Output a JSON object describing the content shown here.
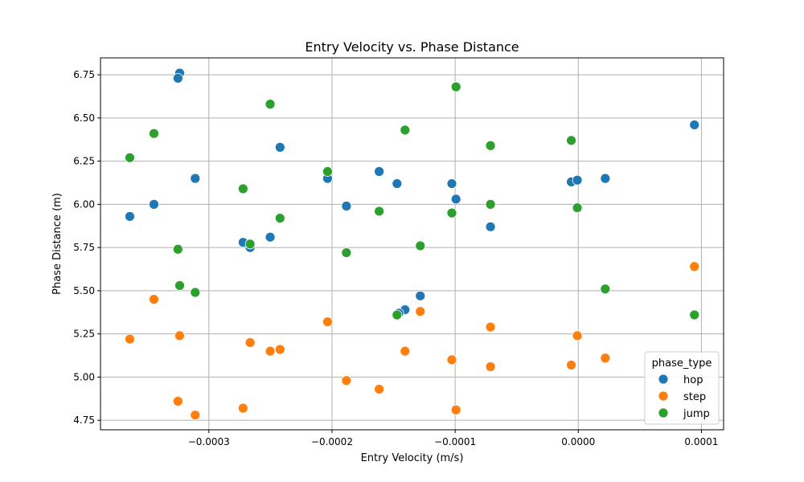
{
  "chart_data": {
    "type": "scatter",
    "title": "Entry Velocity vs. Phase Distance",
    "xlabel": "Entry Velocity (m/s)",
    "ylabel": "Phase Distance (m)",
    "xlim": [
      -0.000388,
      0.000118
    ],
    "ylim": [
      4.695,
      6.848
    ],
    "x_ticks": [
      -0.0003,
      -0.0002,
      -0.0001,
      0.0,
      0.0001
    ],
    "x_tick_labels": [
      "−0.0003",
      "−0.0002",
      "−0.0001",
      "0.0000",
      "0.0001"
    ],
    "y_ticks": [
      4.75,
      5.0,
      5.25,
      5.5,
      5.75,
      6.0,
      6.25,
      6.5,
      6.75
    ],
    "y_tick_labels": [
      "4.75",
      "5.00",
      "5.25",
      "5.50",
      "5.75",
      "6.00",
      "6.25",
      "6.50",
      "6.75"
    ],
    "grid": true,
    "legend": {
      "title": "phase_type",
      "placement": "lower-right"
    },
    "series": [
      {
        "name": "hop",
        "color": "#1f77b4",
        "points": [
          [
            -0.0003237,
            6.76
          ],
          [
            -0.0003251,
            6.73
          ],
          [
            -0.0003642,
            5.93
          ],
          [
            -0.0003446,
            6.0
          ],
          [
            -0.0003111,
            6.15
          ],
          [
            -0.0002722,
            5.78
          ],
          [
            -0.0002665,
            5.75
          ],
          [
            -0.0002502,
            5.81
          ],
          [
            -0.0002422,
            6.33
          ],
          [
            -0.0002036,
            6.15
          ],
          [
            -0.0001883,
            5.99
          ],
          [
            -0.0001617,
            6.19
          ],
          [
            -0.0001472,
            6.12
          ],
          [
            -0.0001407,
            5.39
          ],
          [
            -0.0001457,
            5.37
          ],
          [
            -0.0001283,
            5.47
          ],
          [
            -0.0001027,
            6.12
          ],
          [
            -9.93e-05,
            6.03
          ],
          [
            -7.13e-05,
            5.87
          ],
          [
            -5.7e-06,
            6.13
          ],
          [
            -8e-07,
            6.14
          ],
          [
            2.19e-05,
            6.15
          ],
          [
            9.43e-05,
            6.46
          ]
        ]
      },
      {
        "name": "step",
        "color": "#ff7f0e",
        "points": [
          [
            -0.0003642,
            5.22
          ],
          [
            -0.0003446,
            5.45
          ],
          [
            -0.0003237,
            5.24
          ],
          [
            -0.0003251,
            4.86
          ],
          [
            -0.0003111,
            4.78
          ],
          [
            -0.0002722,
            4.82
          ],
          [
            -0.0002665,
            5.2
          ],
          [
            -0.0002502,
            5.15
          ],
          [
            -0.0002422,
            5.16
          ],
          [
            -0.0002036,
            5.32
          ],
          [
            -0.0001883,
            4.98
          ],
          [
            -0.0001617,
            4.93
          ],
          [
            -0.0001407,
            5.15
          ],
          [
            -0.0001283,
            5.38
          ],
          [
            -0.0001027,
            5.1
          ],
          [
            -9.93e-05,
            4.81
          ],
          [
            -7.13e-05,
            5.29
          ],
          [
            -7.13e-05,
            5.06
          ],
          [
            -5.7e-06,
            5.07
          ],
          [
            -8e-07,
            5.24
          ],
          [
            2.19e-05,
            5.11
          ],
          [
            9.43e-05,
            5.64
          ]
        ]
      },
      {
        "name": "jump",
        "color": "#2ca02c",
        "points": [
          [
            -0.0003642,
            6.27
          ],
          [
            -0.0003446,
            6.41
          ],
          [
            -0.0003251,
            5.74
          ],
          [
            -0.0003237,
            5.53
          ],
          [
            -0.0003111,
            5.49
          ],
          [
            -0.0002722,
            6.09
          ],
          [
            -0.0002665,
            5.77
          ],
          [
            -0.0002502,
            6.58
          ],
          [
            -0.0002422,
            5.92
          ],
          [
            -0.0002036,
            6.19
          ],
          [
            -0.0001883,
            5.72
          ],
          [
            -0.0001617,
            5.96
          ],
          [
            -0.0001407,
            6.43
          ],
          [
            -0.0001472,
            5.36
          ],
          [
            -0.0001283,
            5.76
          ],
          [
            -0.0001027,
            5.95
          ],
          [
            -9.93e-05,
            6.68
          ],
          [
            -7.13e-05,
            6.34
          ],
          [
            -7.13e-05,
            6.0
          ],
          [
            -5.7e-06,
            6.37
          ],
          [
            -8e-07,
            5.98
          ],
          [
            2.19e-05,
            5.51
          ],
          [
            9.43e-05,
            5.36
          ]
        ]
      }
    ]
  }
}
